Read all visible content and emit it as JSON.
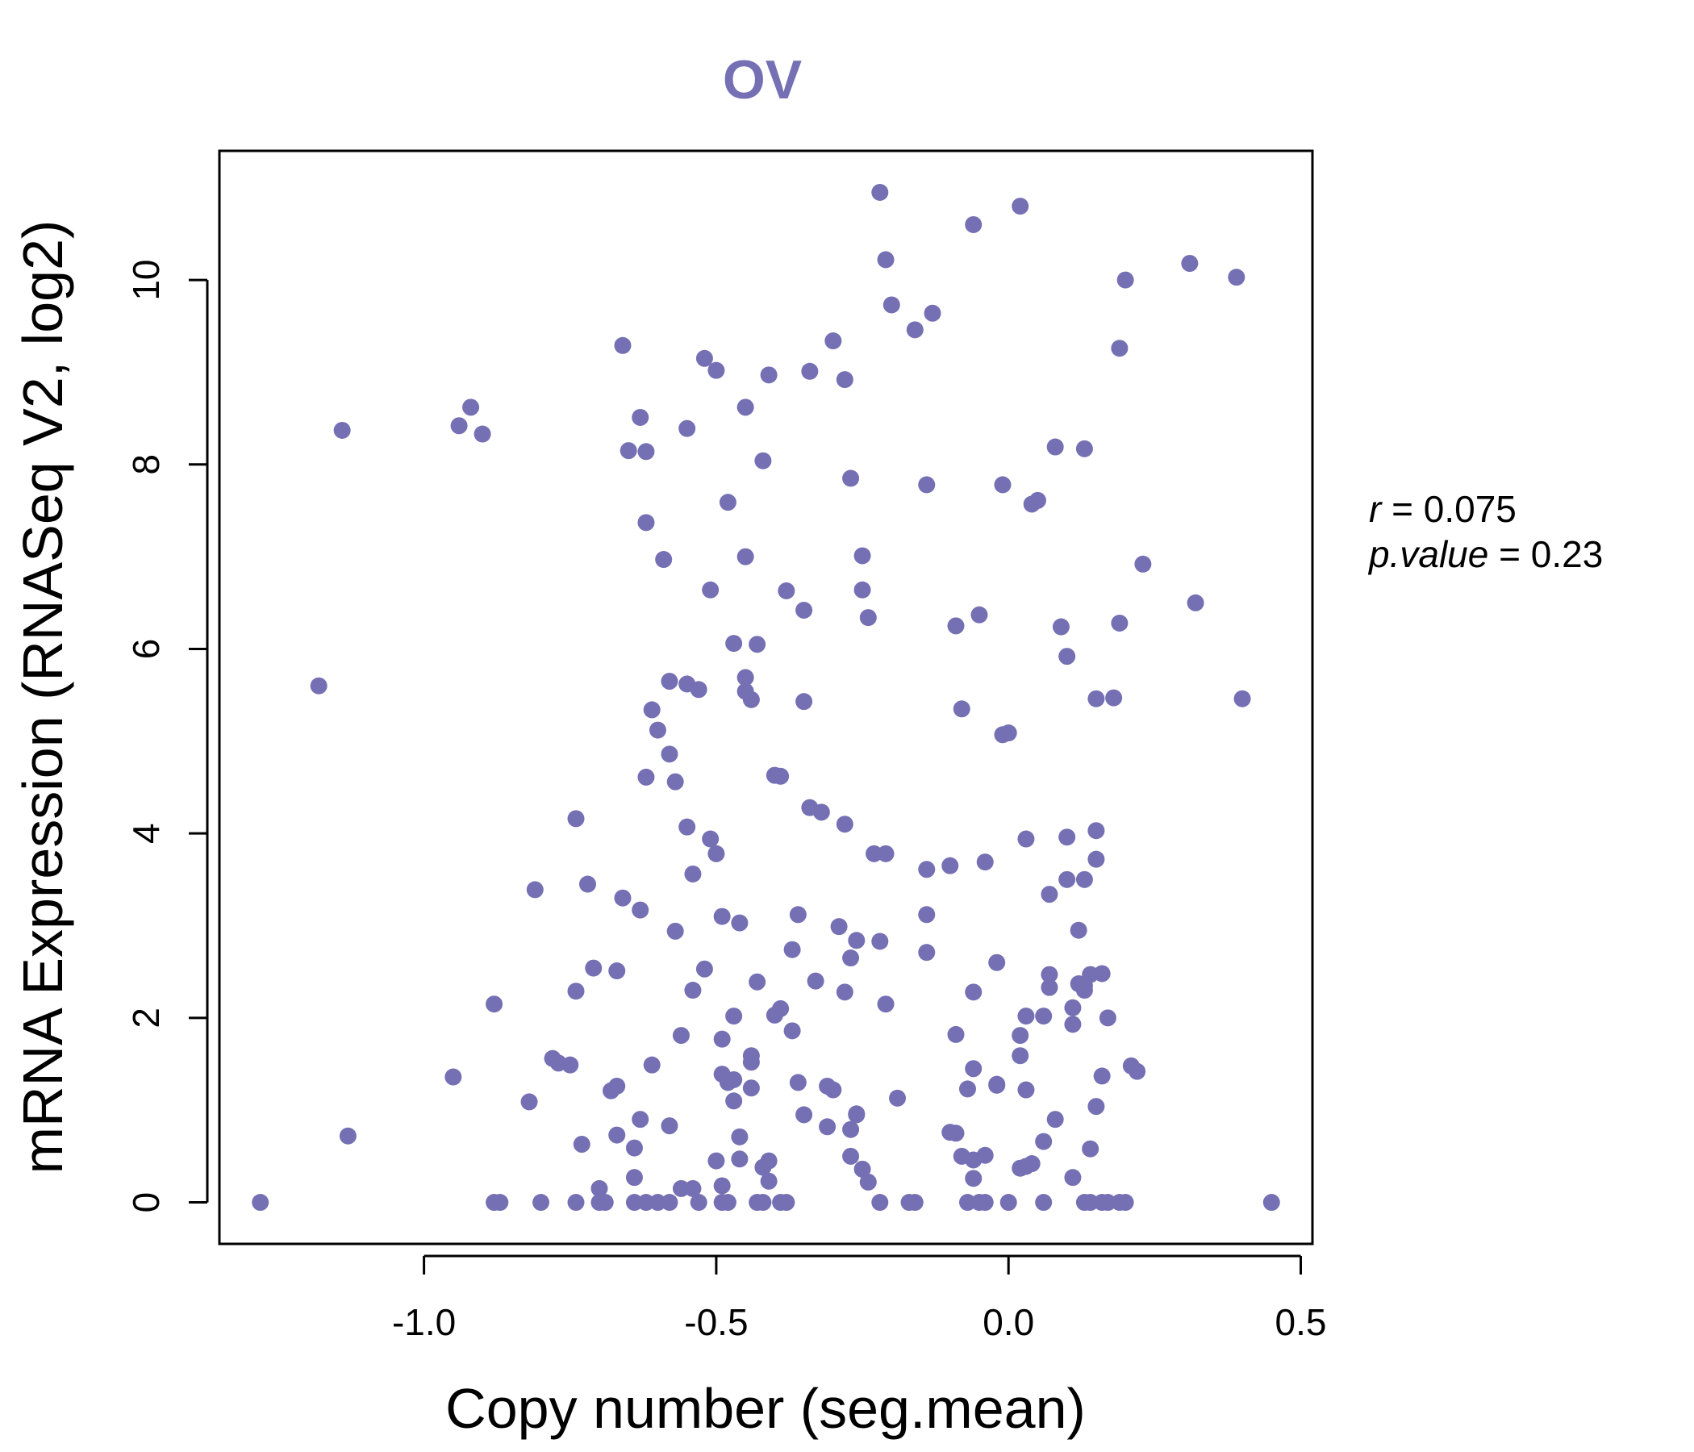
{
  "chart_data": {
    "type": "scatter",
    "title": "OV",
    "xlabel": "Copy number (seg.mean)",
    "ylabel": "mRNA Expression (RNASeq V2, log2)",
    "xlim": [
      -1.35,
      0.52
    ],
    "ylim": [
      -0.45,
      11.4
    ],
    "xticks": [
      -1.0,
      -0.5,
      0.0,
      0.5
    ],
    "xtick_labels": [
      "-1.0",
      "-0.5",
      "0.0",
      "0.5"
    ],
    "yticks": [
      0,
      2,
      4,
      6,
      8,
      10
    ],
    "ytick_labels": [
      "0",
      "2",
      "4",
      "6",
      "8",
      "10"
    ],
    "grid": false,
    "point_color": "#7570b3",
    "stats": {
      "r_label": "r",
      "r_value": "0.075",
      "p_label": "p.value",
      "p_value": "0.23"
    },
    "points": [
      [
        -1.28,
        0.0
      ],
      [
        -1.18,
        5.6
      ],
      [
        -1.14,
        8.37
      ],
      [
        -1.13,
        0.72
      ],
      [
        -0.95,
        1.36
      ],
      [
        -0.94,
        8.42
      ],
      [
        -0.92,
        8.62
      ],
      [
        -0.9,
        8.33
      ],
      [
        -0.88,
        2.15
      ],
      [
        -0.88,
        0.0
      ],
      [
        -0.87,
        0.0
      ],
      [
        -0.82,
        1.09
      ],
      [
        -0.81,
        3.39
      ],
      [
        -0.8,
        0.0
      ],
      [
        -0.78,
        1.56
      ],
      [
        -0.77,
        1.51
      ],
      [
        -0.75,
        1.49
      ],
      [
        -0.74,
        2.29
      ],
      [
        -0.74,
        0.0
      ],
      [
        -0.74,
        4.16
      ],
      [
        -0.73,
        0.63
      ],
      [
        -0.72,
        3.45
      ],
      [
        -0.71,
        2.54
      ],
      [
        -0.7,
        0.15
      ],
      [
        -0.7,
        0.0
      ],
      [
        -0.69,
        0.0
      ],
      [
        -0.68,
        1.21
      ],
      [
        -0.67,
        2.51
      ],
      [
        -0.67,
        1.26
      ],
      [
        -0.67,
        0.73
      ],
      [
        -0.66,
        9.29
      ],
      [
        -0.66,
        3.3
      ],
      [
        -0.65,
        8.15
      ],
      [
        -0.64,
        0.0
      ],
      [
        -0.64,
        0.59
      ],
      [
        -0.64,
        0.27
      ],
      [
        -0.63,
        8.51
      ],
      [
        -0.63,
        0.9
      ],
      [
        -0.63,
        3.17
      ],
      [
        -0.62,
        8.14
      ],
      [
        -0.62,
        4.61
      ],
      [
        -0.62,
        0.0
      ],
      [
        -0.62,
        7.37
      ],
      [
        -0.61,
        1.49
      ],
      [
        -0.61,
        5.34
      ],
      [
        -0.6,
        5.12
      ],
      [
        -0.6,
        0.0
      ],
      [
        -0.59,
        6.97
      ],
      [
        -0.58,
        5.65
      ],
      [
        -0.58,
        4.86
      ],
      [
        -0.58,
        0.83
      ],
      [
        -0.58,
        0.0
      ],
      [
        -0.57,
        4.56
      ],
      [
        -0.57,
        2.94
      ],
      [
        -0.56,
        1.81
      ],
      [
        -0.56,
        0.15
      ],
      [
        -0.55,
        5.62
      ],
      [
        -0.55,
        4.07
      ],
      [
        -0.55,
        8.39
      ],
      [
        -0.54,
        3.56
      ],
      [
        -0.54,
        2.3
      ],
      [
        -0.54,
        0.15
      ],
      [
        -0.53,
        0.0
      ],
      [
        -0.53,
        5.56
      ],
      [
        -0.52,
        9.15
      ],
      [
        -0.52,
        2.53
      ],
      [
        -0.51,
        6.64
      ],
      [
        -0.51,
        3.94
      ],
      [
        -0.5,
        0.45
      ],
      [
        -0.5,
        3.78
      ],
      [
        -0.5,
        9.02
      ],
      [
        -0.49,
        0.18
      ],
      [
        -0.49,
        0.0
      ],
      [
        -0.49,
        1.39
      ],
      [
        -0.49,
        3.1
      ],
      [
        -0.49,
        1.77
      ],
      [
        -0.48,
        7.59
      ],
      [
        -0.48,
        1.3
      ],
      [
        -0.48,
        0.0
      ],
      [
        -0.47,
        2.02
      ],
      [
        -0.47,
        1.33
      ],
      [
        -0.47,
        1.1
      ],
      [
        -0.47,
        6.06
      ],
      [
        -0.46,
        0.47
      ],
      [
        -0.46,
        3.03
      ],
      [
        -0.46,
        0.71
      ],
      [
        -0.45,
        8.62
      ],
      [
        -0.45,
        7.0
      ],
      [
        -0.45,
        5.69
      ],
      [
        -0.45,
        5.54
      ],
      [
        -0.44,
        5.45
      ],
      [
        -0.44,
        1.24
      ],
      [
        -0.44,
        1.59
      ],
      [
        -0.44,
        1.52
      ],
      [
        -0.43,
        0.0
      ],
      [
        -0.43,
        2.39
      ],
      [
        -0.43,
        6.05
      ],
      [
        -0.42,
        8.04
      ],
      [
        -0.42,
        0.0
      ],
      [
        -0.42,
        0.38
      ],
      [
        -0.41,
        0.45
      ],
      [
        -0.41,
        0.23
      ],
      [
        -0.41,
        8.97
      ],
      [
        -0.4,
        4.63
      ],
      [
        -0.4,
        2.03
      ],
      [
        -0.39,
        4.62
      ],
      [
        -0.39,
        2.1
      ],
      [
        -0.39,
        0.0
      ],
      [
        -0.38,
        6.63
      ],
      [
        -0.38,
        0.0
      ],
      [
        -0.37,
        2.74
      ],
      [
        -0.37,
        1.86
      ],
      [
        -0.36,
        1.3
      ],
      [
        -0.36,
        3.12
      ],
      [
        -0.35,
        0.95
      ],
      [
        -0.35,
        5.43
      ],
      [
        -0.35,
        6.42
      ],
      [
        -0.34,
        9.01
      ],
      [
        -0.34,
        4.28
      ],
      [
        -0.33,
        2.4
      ],
      [
        -0.32,
        4.23
      ],
      [
        -0.31,
        0.82
      ],
      [
        -0.31,
        1.26
      ],
      [
        -0.3,
        9.34
      ],
      [
        -0.3,
        1.22
      ],
      [
        -0.29,
        2.99
      ],
      [
        -0.28,
        8.92
      ],
      [
        -0.28,
        4.1
      ],
      [
        -0.28,
        2.28
      ],
      [
        -0.27,
        0.79
      ],
      [
        -0.27,
        0.5
      ],
      [
        -0.27,
        2.65
      ],
      [
        -0.27,
        7.85
      ],
      [
        -0.26,
        2.84
      ],
      [
        -0.26,
        0.95
      ],
      [
        -0.26,
        0.96
      ],
      [
        -0.25,
        6.64
      ],
      [
        -0.25,
        0.36
      ],
      [
        -0.25,
        7.01
      ],
      [
        -0.24,
        6.34
      ],
      [
        -0.24,
        0.22
      ],
      [
        -0.23,
        3.78
      ],
      [
        -0.22,
        10.95
      ],
      [
        -0.22,
        0.0
      ],
      [
        -0.22,
        2.83
      ],
      [
        -0.21,
        3.78
      ],
      [
        -0.21,
        10.22
      ],
      [
        -0.21,
        2.15
      ],
      [
        -0.2,
        9.73
      ],
      [
        -0.19,
        1.13
      ],
      [
        -0.17,
        0.0
      ],
      [
        -0.16,
        0.0
      ],
      [
        -0.16,
        9.46
      ],
      [
        -0.14,
        3.12
      ],
      [
        -0.14,
        2.71
      ],
      [
        -0.14,
        3.61
      ],
      [
        -0.14,
        7.78
      ],
      [
        -0.13,
        9.64
      ],
      [
        -0.1,
        3.65
      ],
      [
        -0.1,
        0.76
      ],
      [
        -0.09,
        6.25
      ],
      [
        -0.09,
        1.82
      ],
      [
        -0.09,
        0.75
      ],
      [
        -0.08,
        0.5
      ],
      [
        -0.08,
        5.35
      ],
      [
        -0.07,
        1.23
      ],
      [
        -0.07,
        0.0
      ],
      [
        -0.06,
        0.46
      ],
      [
        -0.06,
        1.45
      ],
      [
        -0.06,
        0.26
      ],
      [
        -0.06,
        2.28
      ],
      [
        -0.06,
        10.6
      ],
      [
        -0.05,
        6.37
      ],
      [
        -0.05,
        0.0
      ],
      [
        -0.04,
        0.0
      ],
      [
        -0.04,
        3.69
      ],
      [
        -0.04,
        0.51
      ],
      [
        -0.02,
        1.27
      ],
      [
        -0.02,
        2.6
      ],
      [
        -0.02,
        1.28
      ],
      [
        -0.01,
        7.78
      ],
      [
        -0.01,
        5.07
      ],
      [
        0.0,
        0.0
      ],
      [
        0.0,
        5.09
      ],
      [
        0.02,
        0.37
      ],
      [
        0.02,
        1.59
      ],
      [
        0.02,
        1.81
      ],
      [
        0.02,
        10.8
      ],
      [
        0.03,
        1.22
      ],
      [
        0.03,
        3.94
      ],
      [
        0.03,
        2.02
      ],
      [
        0.03,
        0.39
      ],
      [
        0.04,
        0.42
      ],
      [
        0.04,
        7.57
      ],
      [
        0.05,
        7.61
      ],
      [
        0.06,
        0.0
      ],
      [
        0.06,
        2.02
      ],
      [
        0.06,
        0.66
      ],
      [
        0.07,
        2.47
      ],
      [
        0.07,
        2.33
      ],
      [
        0.07,
        3.34
      ],
      [
        0.08,
        0.9
      ],
      [
        0.08,
        8.19
      ],
      [
        0.09,
        6.24
      ],
      [
        0.1,
        3.96
      ],
      [
        0.1,
        5.92
      ],
      [
        0.1,
        3.5
      ],
      [
        0.11,
        2.11
      ],
      [
        0.11,
        1.93
      ],
      [
        0.11,
        0.27
      ],
      [
        0.12,
        2.37
      ],
      [
        0.12,
        2.95
      ],
      [
        0.13,
        2.35
      ],
      [
        0.13,
        0.0
      ],
      [
        0.13,
        2.3
      ],
      [
        0.13,
        8.17
      ],
      [
        0.13,
        3.5
      ],
      [
        0.14,
        2.47
      ],
      [
        0.14,
        0.0
      ],
      [
        0.14,
        0.58
      ],
      [
        0.15,
        1.04
      ],
      [
        0.15,
        4.03
      ],
      [
        0.15,
        3.72
      ],
      [
        0.15,
        5.46
      ],
      [
        0.16,
        2.48
      ],
      [
        0.16,
        0.0
      ],
      [
        0.16,
        1.37
      ],
      [
        0.17,
        2.0
      ],
      [
        0.17,
        0.0
      ],
      [
        0.18,
        5.47
      ],
      [
        0.19,
        9.26
      ],
      [
        0.19,
        6.28
      ],
      [
        0.19,
        0.0
      ],
      [
        0.2,
        10.0
      ],
      [
        0.2,
        0.0
      ],
      [
        0.21,
        1.48
      ],
      [
        0.22,
        1.42
      ],
      [
        0.23,
        6.92
      ],
      [
        0.31,
        10.18
      ],
      [
        0.32,
        6.5
      ],
      [
        0.39,
        10.03
      ],
      [
        0.4,
        5.46
      ],
      [
        0.45,
        0.0
      ]
    ]
  }
}
